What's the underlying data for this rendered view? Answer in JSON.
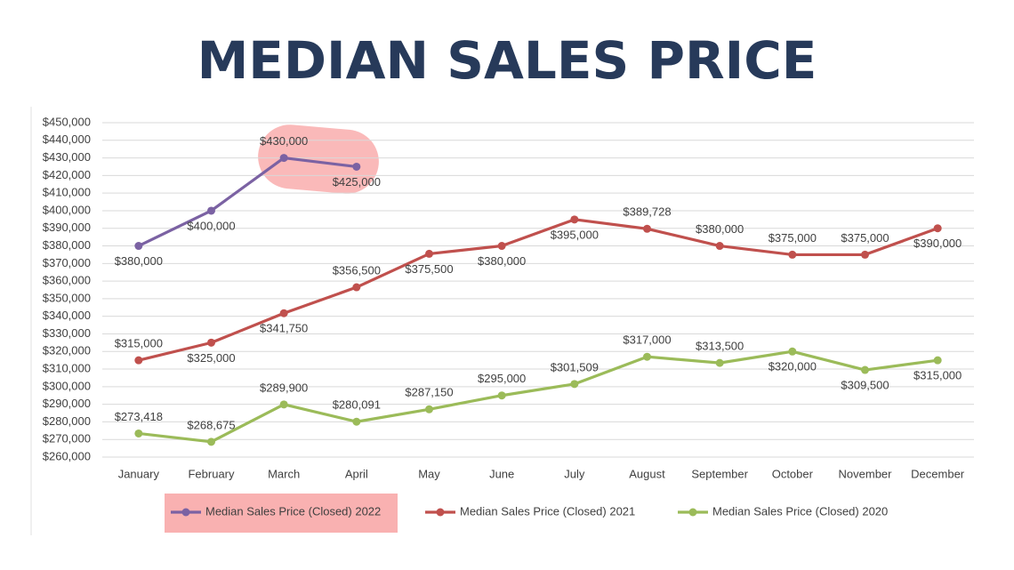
{
  "chart_data": {
    "type": "line",
    "title": "MEDIAN SALES PRICE",
    "categories": [
      "January",
      "February",
      "March",
      "April",
      "May",
      "June",
      "July",
      "August",
      "September",
      "October",
      "November",
      "December"
    ],
    "ylim": [
      260000,
      450000
    ],
    "yticks": [
      {
        "value": 260000,
        "label": "$260,000"
      },
      {
        "value": 270000,
        "label": "$270,000"
      },
      {
        "value": 280000,
        "label": "$280,000"
      },
      {
        "value": 290000,
        "label": "$290,000"
      },
      {
        "value": 300000,
        "label": "$300,000"
      },
      {
        "value": 310000,
        "label": "$310,000"
      },
      {
        "value": 320000,
        "label": "$320,000"
      },
      {
        "value": 330000,
        "label": "$330,000"
      },
      {
        "value": 340000,
        "label": "$340,000"
      },
      {
        "value": 350000,
        "label": "$350,000"
      },
      {
        "value": 360000,
        "label": "$360,000"
      },
      {
        "value": 370000,
        "label": "$370,000"
      },
      {
        "value": 380000,
        "label": "$380,000"
      },
      {
        "value": 390000,
        "label": "$390,000"
      },
      {
        "value": 400000,
        "label": "$400,000"
      },
      {
        "value": 410000,
        "label": "$410,000"
      },
      {
        "value": 420000,
        "label": "$420,000"
      },
      {
        "value": 430000,
        "label": "$430,000"
      },
      {
        "value": 440000,
        "label": "$440,000"
      },
      {
        "value": 450000,
        "label": "$450,000"
      }
    ],
    "grid": true,
    "legend": "bottom",
    "series": [
      {
        "name": "Median Sales Price (Closed) 2022",
        "color": "#7b62a3",
        "values": [
          380000,
          400000,
          430000,
          425000,
          null,
          null,
          null,
          null,
          null,
          null,
          null,
          null
        ],
        "value_labels": [
          "$380,000",
          "$400,000",
          "$430,000",
          "$425,000",
          null,
          null,
          null,
          null,
          null,
          null,
          null,
          null
        ]
      },
      {
        "name": "Median Sales Price (Closed) 2021",
        "color": "#c0504d",
        "values": [
          315000,
          325000,
          341750,
          356500,
          375500,
          380000,
          395000,
          389728,
          380000,
          375000,
          375000,
          390000
        ],
        "value_labels": [
          "$315,000",
          "$325,000",
          "$341,750",
          "$356,500",
          "$375,500",
          "$380,000",
          "$395,000",
          "$389,728",
          "$380,000",
          "$375,000",
          "$375,000",
          "$390,000"
        ]
      },
      {
        "name": "Median Sales Price (Closed) 2020",
        "color": "#9bbb59",
        "values": [
          273418,
          268675,
          289900,
          280091,
          287150,
          295000,
          301509,
          317000,
          313500,
          320000,
          309500,
          315000
        ],
        "value_labels": [
          "$273,418",
          "$268,675",
          "$289,900",
          "$280,091",
          "$287,150",
          "$295,000",
          "$301,509",
          "$317,000",
          "$313,500",
          "$320,000",
          "$309,500",
          "$315,000"
        ]
      }
    ]
  }
}
